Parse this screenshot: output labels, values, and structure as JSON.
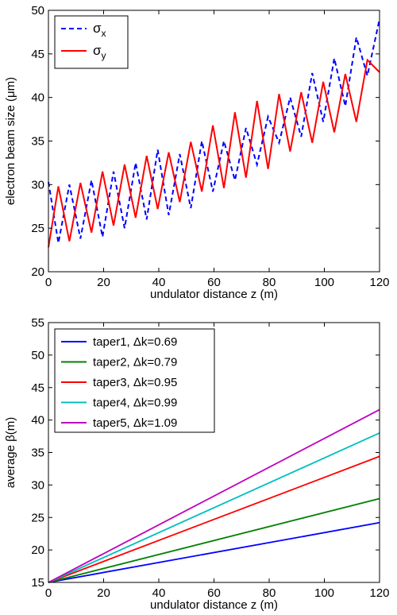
{
  "chart_data": [
    {
      "type": "line",
      "xlabel": "undulator distance z (m)",
      "ylabel": "electron beam size (μm)",
      "xlim": [
        0,
        120
      ],
      "ylim": [
        20,
        50
      ],
      "xticks": [
        0,
        20,
        40,
        60,
        80,
        100,
        120
      ],
      "yticks": [
        20,
        25,
        30,
        35,
        40,
        45,
        50
      ],
      "grid": false,
      "legend_position": "top-left",
      "series": [
        {
          "name": "σx",
          "legend_base": "σ",
          "legend_sub": "x",
          "color": "#0000ff",
          "dash": "dashed",
          "x": [
            0,
            3.6,
            7.6,
            11.6,
            15.6,
            19.6,
            23.6,
            27.6,
            31.6,
            35.6,
            39.6,
            43.6,
            47.6,
            51.6,
            55.6,
            59.6,
            63.6,
            67.6,
            71.6,
            75.6,
            79.6,
            83.6,
            87.6,
            91.6,
            95.6,
            99.6,
            103.6,
            107.6,
            111.6,
            115.6,
            120
          ],
          "y": [
            30.3,
            23.3,
            30.0,
            23.8,
            30.5,
            24.0,
            31.5,
            25.0,
            32.5,
            26.0,
            34.0,
            26.5,
            33.5,
            27.3,
            35.0,
            29.2,
            35.0,
            30.5,
            36.5,
            32.3,
            37.8,
            34.8,
            40.0,
            35.5,
            42.8,
            37.2,
            44.5,
            39.0,
            46.9,
            42.5,
            49.0
          ]
        },
        {
          "name": "σy",
          "legend_base": "σ",
          "legend_sub": "y",
          "color": "#ff0000",
          "dash": "solid",
          "x": [
            0,
            3.6,
            7.6,
            11.6,
            15.6,
            19.6,
            23.6,
            27.6,
            31.6,
            35.6,
            39.6,
            43.6,
            47.6,
            51.6,
            55.6,
            59.6,
            63.6,
            67.6,
            71.6,
            75.6,
            79.6,
            83.6,
            87.6,
            91.6,
            95.6,
            99.6,
            103.6,
            107.6,
            111.6,
            115.6,
            120
          ],
          "y": [
            22.8,
            29.8,
            23.5,
            30.2,
            24.5,
            31.5,
            25.3,
            32.3,
            26.2,
            33.3,
            27.2,
            33.7,
            28.0,
            34.9,
            29.2,
            36.8,
            29.6,
            38.3,
            30.8,
            39.6,
            31.8,
            40.4,
            33.8,
            40.6,
            34.8,
            41.8,
            36.0,
            42.7,
            37.2,
            44.3,
            42.9
          ]
        }
      ]
    },
    {
      "type": "line",
      "xlabel": "undulator distance z (m)",
      "ylabel": "average β(m)",
      "xlim": [
        0,
        120
      ],
      "ylim": [
        15,
        55
      ],
      "xticks": [
        0,
        20,
        40,
        60,
        80,
        100,
        120
      ],
      "yticks": [
        15,
        20,
        25,
        30,
        35,
        40,
        45,
        50,
        55
      ],
      "grid": false,
      "legend_position": "top-left",
      "series": [
        {
          "name": "taper1, Δk=0.69",
          "color": "#0000ff",
          "dash": "solid",
          "x": [
            0,
            120
          ],
          "y": [
            15,
            24.2
          ]
        },
        {
          "name": "taper2, Δk=0.79",
          "color": "#008000",
          "dash": "solid",
          "x": [
            0,
            120
          ],
          "y": [
            15,
            27.9
          ]
        },
        {
          "name": "taper3, Δk=0.95",
          "color": "#ff0000",
          "dash": "solid",
          "x": [
            0,
            120
          ],
          "y": [
            15,
            34.4
          ]
        },
        {
          "name": "taper4, Δk=0.99",
          "color": "#00bfbf",
          "dash": "solid",
          "x": [
            0,
            120
          ],
          "y": [
            15,
            38.0
          ]
        },
        {
          "name": "taper5, Δk=1.09",
          "color": "#bf00bf",
          "dash": "solid",
          "x": [
            0,
            120
          ],
          "y": [
            15,
            41.6
          ]
        }
      ]
    }
  ]
}
